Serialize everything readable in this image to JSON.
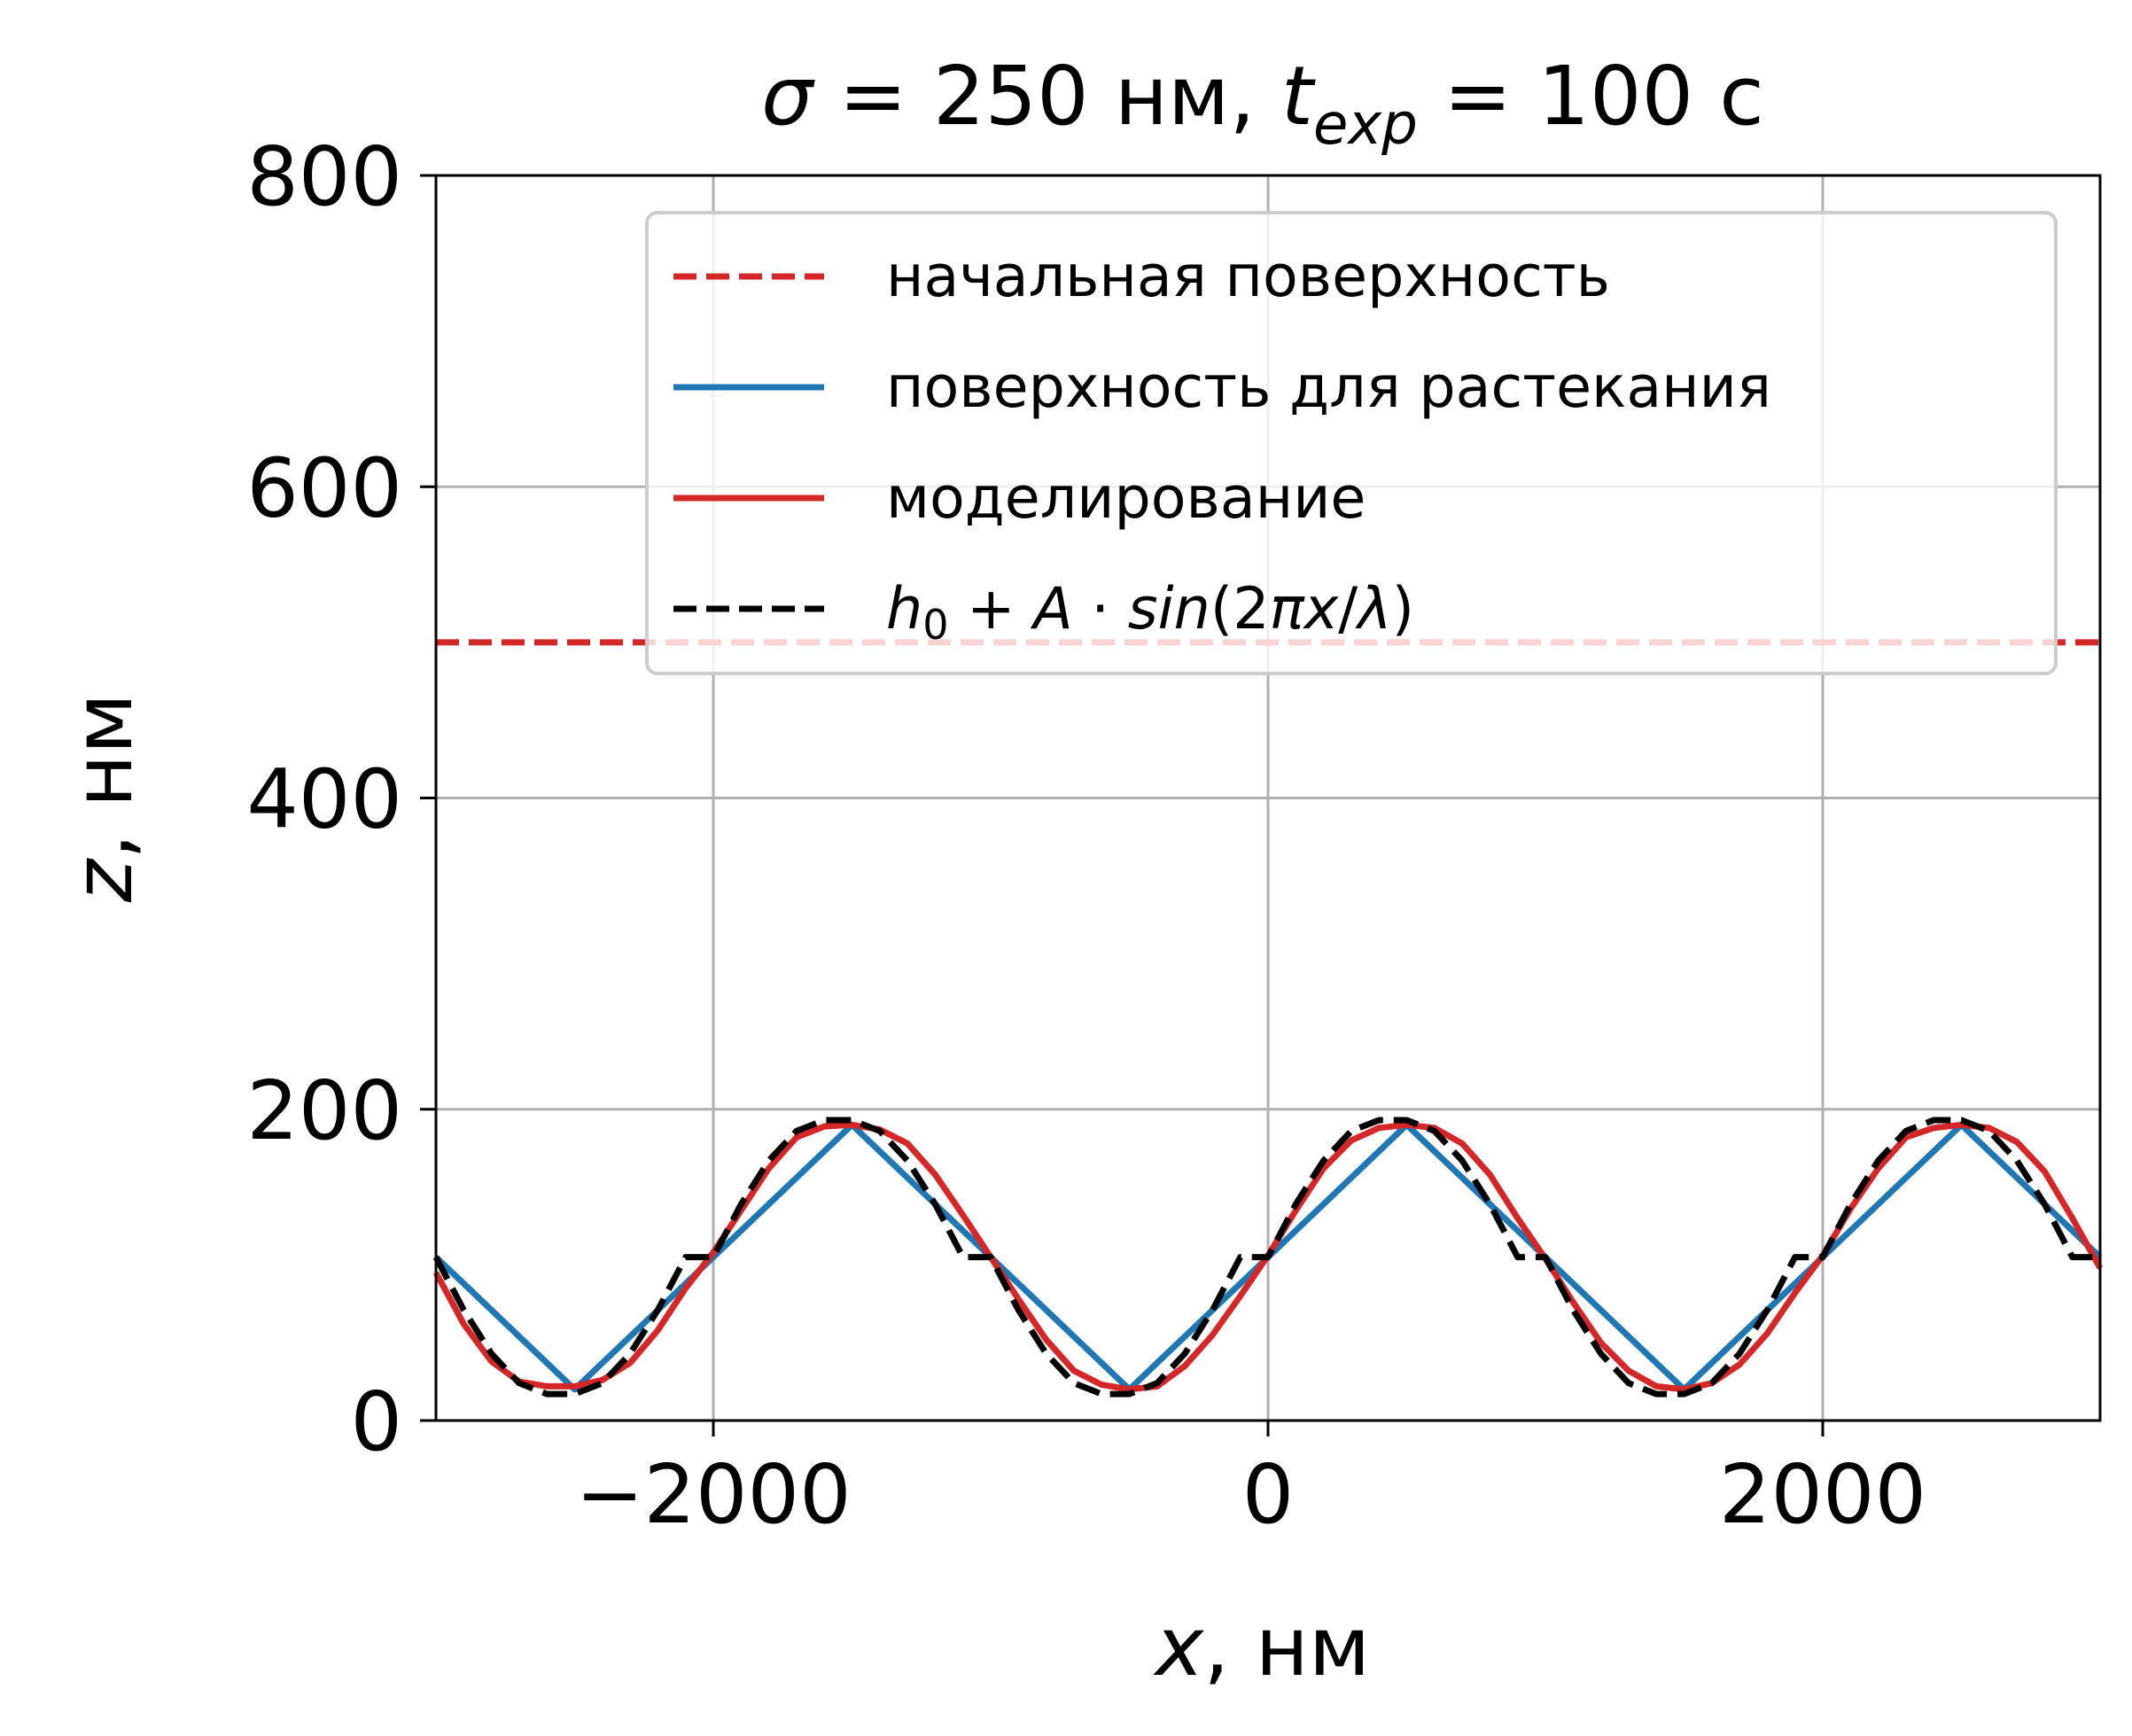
{
  "chart_data": {
    "type": "line",
    "title": {
      "prefix_symbol": "σ",
      "middle": " = 250 нм, ",
      "t_symbol": "t",
      "t_subscript": "exp",
      "suffix": " = 100 с"
    },
    "xlabel": {
      "symbol": "x",
      "text": ", нм"
    },
    "ylabel": {
      "symbol": "z",
      "text": ", нм"
    },
    "xlim": [
      -3000,
      3000
    ],
    "ylim": [
      0,
      800
    ],
    "x_ticks": [
      -2000,
      0,
      2000
    ],
    "x_tick_labels": [
      "−2000",
      "0",
      "2000"
    ],
    "y_ticks": [
      0,
      200,
      400,
      600,
      800
    ],
    "y_tick_labels": [
      "0",
      "200",
      "400",
      "600",
      "800"
    ],
    "grid": true,
    "legend_position": "top-right",
    "series": [
      {
        "name": "начальная поверхность",
        "style": "dashed",
        "color": "#d62728",
        "x": [
          -3000,
          3000
        ],
        "y": [
          500,
          500
        ]
      },
      {
        "name": "поверхность для растекания",
        "style": "solid",
        "color": "#1f77b4",
        "x": [
          -3000,
          -2500,
          -2000,
          -1500,
          -1000,
          -500,
          0,
          500,
          1000,
          1500,
          2000,
          2500,
          3000
        ],
        "y": [
          105,
          20,
          105,
          190,
          105,
          20,
          105,
          190,
          105,
          20,
          105,
          190,
          105
        ]
      },
      {
        "name": "моделирование",
        "style": "solid",
        "color": "#d62728",
        "x": [
          -3000,
          -2900,
          -2800,
          -2700,
          -2600,
          -2500,
          -2400,
          -2300,
          -2200,
          -2100,
          -2000,
          -1900,
          -1800,
          -1700,
          -1600,
          -1500,
          -1400,
          -1300,
          -1200,
          -1100,
          -1000,
          -900,
          -800,
          -700,
          -600,
          -500,
          -400,
          -300,
          -200,
          -100,
          0,
          100,
          200,
          300,
          400,
          500,
          600,
          700,
          800,
          900,
          1000,
          1100,
          1200,
          1300,
          1400,
          1500,
          1600,
          1700,
          1800,
          1900,
          2000,
          2100,
          2200,
          2300,
          2400,
          2500,
          2600,
          2700,
          2800,
          2900,
          3000
        ],
        "y": [
          95,
          62,
          38,
          25,
          22,
          22,
          26,
          37,
          58,
          85,
          108,
          135,
          162,
          182,
          189,
          190,
          187,
          178,
          158,
          132,
          105,
          78,
          52,
          32,
          23,
          20,
          22,
          35,
          55,
          80,
          106,
          135,
          162,
          180,
          188,
          190,
          188,
          178,
          158,
          130,
          104,
          76,
          50,
          32,
          22,
          20,
          24,
          36,
          56,
          82,
          106,
          136,
          162,
          182,
          188,
          190,
          188,
          179,
          160,
          130,
          98
        ]
      },
      {
        "name": "h₀ + A · sin(2πx/λ)",
        "style": "dashed",
        "color": "#000000",
        "x": [
          -3000,
          -2900,
          -2800,
          -2700,
          -2600,
          -2500,
          -2400,
          -2300,
          -2200,
          -2100,
          -2000,
          -1900,
          -1800,
          -1700,
          -1600,
          -1500,
          -1400,
          -1300,
          -1200,
          -1100,
          -1000,
          -900,
          -800,
          -700,
          -600,
          -500,
          -400,
          -300,
          -200,
          -100,
          0,
          100,
          200,
          300,
          400,
          500,
          600,
          700,
          800,
          900,
          1000,
          1100,
          1200,
          1300,
          1400,
          1500,
          1600,
          1700,
          1800,
          1900,
          2000,
          2100,
          2200,
          2300,
          2400,
          2500,
          2600,
          2700,
          2800,
          2900,
          3000
        ],
        "y": [
          105,
          71,
          43,
          24,
          17,
          17,
          24,
          43,
          71,
          105,
          105,
          139,
          167,
          186,
          193,
          193,
          186,
          167,
          139,
          105,
          105,
          71,
          43,
          24,
          17,
          17,
          24,
          43,
          71,
          105,
          105,
          139,
          167,
          186,
          193,
          193,
          186,
          167,
          139,
          105,
          105,
          71,
          43,
          24,
          17,
          17,
          24,
          43,
          71,
          105,
          105,
          139,
          167,
          186,
          193,
          193,
          186,
          167,
          139,
          105,
          105
        ]
      }
    ],
    "legend": {
      "entries": [
        {
          "label": "начальная поверхность",
          "color": "#d62728",
          "style": "dashed"
        },
        {
          "label": "поверхность для растекания",
          "color": "#1f77b4",
          "style": "solid"
        },
        {
          "label": "моделирование",
          "color": "#d62728",
          "style": "solid"
        },
        {
          "label_parts": [
            "h",
            "0",
            " + ",
            "A",
            " · ",
            "sin",
            "(2",
            "π",
            "x",
            "/",
            "λ",
            ")"
          ],
          "color": "#000000",
          "style": "dashed"
        }
      ]
    }
  }
}
